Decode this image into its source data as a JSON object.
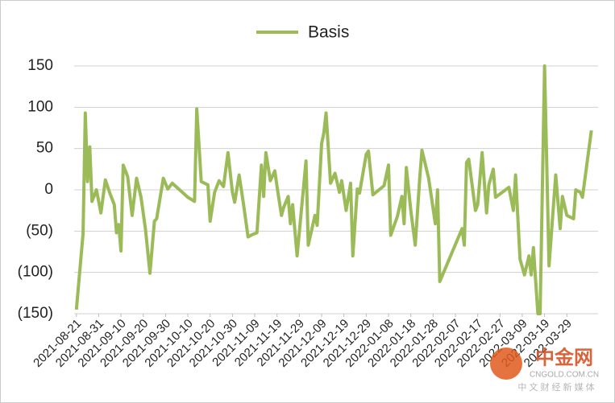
{
  "chart_data": {
    "type": "line",
    "series": [
      {
        "name": "Basis",
        "color": "#9bbb59",
        "x": [
          "2021-08-21",
          "2021-08-24",
          "2021-08-25",
          "2021-08-26",
          "2021-08-27",
          "2021-08-28",
          "2021-08-30",
          "2021-09-01",
          "2021-09-03",
          "2021-09-05",
          "2021-09-07",
          "2021-09-08",
          "2021-09-09",
          "2021-09-10",
          "2021-09-11",
          "2021-09-13",
          "2021-09-15",
          "2021-09-17",
          "2021-09-19",
          "2021-09-21",
          "2021-09-23",
          "2021-09-25",
          "2021-09-26",
          "2021-09-29",
          "2021-10-01",
          "2021-10-03",
          "2021-10-10",
          "2021-10-13",
          "2021-10-14",
          "2021-10-16",
          "2021-10-19",
          "2021-10-20",
          "2021-10-22",
          "2021-10-24",
          "2021-10-26",
          "2021-10-28",
          "2021-10-30",
          "2021-10-31",
          "2021-11-02",
          "2021-11-04",
          "2021-11-06",
          "2021-11-08",
          "2021-11-10",
          "2021-11-12",
          "2021-11-13",
          "2021-11-14",
          "2021-11-16",
          "2021-11-18",
          "2021-11-19",
          "2021-11-21",
          "2021-11-22",
          "2021-11-24",
          "2021-11-25",
          "2021-11-26",
          "2021-11-28",
          "2021-12-02",
          "2021-12-03",
          "2021-12-06",
          "2021-12-07",
          "2021-12-09",
          "2021-12-10",
          "2021-12-11",
          "2021-12-13",
          "2021-12-15",
          "2021-12-17",
          "2021-12-18",
          "2021-12-20",
          "2021-12-22",
          "2021-12-23",
          "2021-12-25",
          "2021-12-26",
          "2021-12-29",
          "2021-12-30",
          "2022-01-01",
          "2022-01-06",
          "2022-01-08",
          "2022-01-09",
          "2022-01-12",
          "2022-01-14",
          "2022-01-15",
          "2022-01-16",
          "2022-01-18",
          "2022-01-20",
          "2022-01-22",
          "2022-01-23",
          "2022-01-26",
          "2022-01-29",
          "2022-01-30",
          "2022-01-31",
          "2022-02-10",
          "2022-02-11",
          "2022-02-12",
          "2022-02-13",
          "2022-02-16",
          "2022-02-17",
          "2022-02-19",
          "2022-02-21",
          "2022-02-22",
          "2022-02-24",
          "2022-02-25",
          "2022-02-27",
          "2022-03-03",
          "2022-03-05",
          "2022-03-06",
          "2022-03-08",
          "2022-03-10",
          "2022-03-12",
          "2022-03-13",
          "2022-03-14",
          "2022-03-16",
          "2022-03-17",
          "2022-03-19",
          "2022-03-21",
          "2022-03-24",
          "2022-03-26",
          "2022-03-27",
          "2022-03-29",
          "2022-04-01",
          "2022-04-02",
          "2022-04-04",
          "2022-04-05",
          "2022-04-09"
        ],
        "values": [
          -145,
          -53,
          93,
          10,
          52,
          -14,
          0,
          -28,
          12,
          -4,
          -18,
          -52,
          -42,
          -74,
          30,
          16,
          -31,
          14,
          -9,
          -48,
          -101,
          -38,
          -35,
          14,
          1,
          8,
          -9,
          -14,
          98,
          10,
          6,
          -38,
          -3,
          11,
          4,
          45,
          -3,
          -15,
          18,
          -18,
          -57,
          -54,
          -52,
          30,
          -8,
          45,
          11,
          23,
          4,
          -31,
          -21,
          -8,
          -41,
          -18,
          -80,
          35,
          -67,
          -31,
          -43,
          56,
          69,
          93,
          8,
          20,
          -3,
          11,
          -25,
          8,
          -80,
          1,
          -4,
          43,
          47,
          -6,
          5,
          30,
          -55,
          -32,
          -8,
          -41,
          27,
          -25,
          -67,
          14,
          48,
          14,
          -41,
          0,
          -111,
          -47,
          -67,
          33,
          37,
          -25,
          -18,
          45,
          -28,
          6,
          25,
          -9,
          -5,
          3,
          -25,
          18,
          -84,
          -103,
          -80,
          -103,
          -70,
          -150,
          -150,
          150,
          -92,
          18,
          -47,
          -8,
          -31,
          -35,
          0,
          -3,
          -9,
          72
        ]
      }
    ],
    "xlim": [
      "2021-08-20",
      "2022-04-12"
    ],
    "xticks": [
      "2021-08-21",
      "2021-08-31",
      "2021-09-10",
      "2021-09-20",
      "2021-09-30",
      "2021-10-10",
      "2021-10-20",
      "2021-10-30",
      "2021-11-09",
      "2021-11-19",
      "2021-11-29",
      "2021-12-09",
      "2021-12-19",
      "2021-12-29",
      "2022-01-08",
      "2022-01-18",
      "2022-01-28",
      "2022-02-07",
      "2022-02-17",
      "2022-02-27",
      "2022-03-09",
      "2022-03-19",
      "2022-03-29"
    ],
    "ylim": [
      -150,
      150
    ],
    "yticks": [
      {
        "value": -150,
        "label": "(150)"
      },
      {
        "value": -100,
        "label": "(100)"
      },
      {
        "value": -50,
        "label": "(50)"
      },
      0,
      50,
      100,
      150
    ],
    "grid": true,
    "legend": "top"
  },
  "watermark": {
    "name": "中金网",
    "url": "CNGOLD.COM.CN",
    "slogan": "中 文 财 经 新 媒 体"
  }
}
